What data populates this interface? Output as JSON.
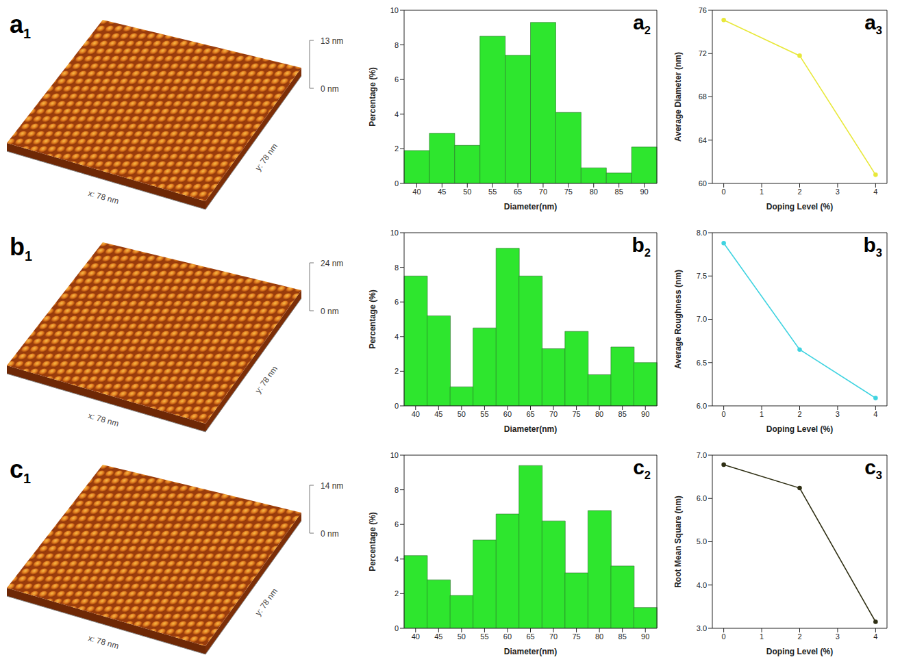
{
  "images": [
    {
      "panel": "a1",
      "z_max": "13 nm",
      "z_min": "0 nm",
      "x_label": "x: 78 nm",
      "y_label": "y: 78 nm"
    },
    {
      "panel": "b1",
      "z_max": "24 nm",
      "z_min": "0 nm",
      "x_label": "x: 78 nm",
      "y_label": "y: 78 nm"
    },
    {
      "panel": "c1",
      "z_max": "14 nm",
      "z_min": "0 nm",
      "x_label": "x: 78 nm",
      "y_label": "y: 78 nm"
    }
  ],
  "chart_data": [
    {
      "panel": "a2",
      "type": "bar",
      "x_label": "Diameter(nm)",
      "y_label": "Percentage (%)",
      "categories": [
        "40",
        "45",
        "50",
        "55",
        "65",
        "70",
        "75",
        "80",
        "85",
        "90"
      ],
      "values": [
        1.9,
        2.9,
        2.2,
        8.5,
        7.4,
        9.3,
        4.1,
        0.9,
        0.6,
        2.1
      ],
      "color": "#2ee62e",
      "ylim": [
        0,
        10
      ],
      "yticks": [
        0,
        2,
        4,
        6,
        8,
        10
      ]
    },
    {
      "panel": "a3",
      "type": "line",
      "x_label": "Doping Level (%)",
      "y_label": "Average Diameter (nm)",
      "x": [
        0,
        2,
        4
      ],
      "values": [
        75.1,
        71.8,
        60.8
      ],
      "color": "#e8e83a",
      "marker": "circle",
      "xlim": [
        -0.3,
        4.3
      ],
      "xticks": [
        0,
        1,
        2,
        3,
        4
      ],
      "ylim": [
        60,
        76
      ],
      "yticks": [
        60,
        64,
        68,
        72,
        76
      ]
    },
    {
      "panel": "b2",
      "type": "bar",
      "x_label": "Diameter(nm)",
      "y_label": "Percentage (%)",
      "categories": [
        "40",
        "45",
        "50",
        "55",
        "60",
        "65",
        "70",
        "75",
        "80",
        "85",
        "90"
      ],
      "values": [
        7.5,
        5.2,
        1.1,
        4.5,
        9.1,
        7.5,
        3.3,
        4.3,
        1.8,
        3.4,
        2.5
      ],
      "color": "#2ee62e",
      "ylim": [
        0,
        10
      ],
      "yticks": [
        0,
        2,
        4,
        6,
        8,
        10
      ]
    },
    {
      "panel": "b3",
      "type": "line",
      "x_label": "Doping Level (%)",
      "y_label": "Average Roughness (nm)",
      "x": [
        0,
        2,
        4
      ],
      "values": [
        7.88,
        6.65,
        6.09
      ],
      "color": "#3fd3e0",
      "marker": "circle",
      "xlim": [
        -0.3,
        4.3
      ],
      "xticks": [
        0,
        1,
        2,
        3,
        4
      ],
      "ylim": [
        6,
        8
      ],
      "yticks": [
        {
          "value": 6,
          "label": "6.0"
        },
        {
          "value": 6.5,
          "label": "6.5"
        },
        {
          "value": 7,
          "label": "7.0"
        },
        {
          "value": 7.5,
          "label": "7.5"
        },
        {
          "value": 8,
          "label": "8.0"
        }
      ]
    },
    {
      "panel": "c2",
      "type": "bar",
      "x_label": "Diameter(nm)",
      "y_label": "Percentage (%)",
      "categories": [
        "40",
        "45",
        "50",
        "55",
        "60",
        "65",
        "70",
        "75",
        "80",
        "85",
        "90"
      ],
      "values": [
        4.2,
        2.8,
        1.9,
        5.1,
        6.6,
        9.4,
        6.2,
        3.2,
        6.8,
        3.6,
        1.2
      ],
      "color": "#2ee62e",
      "ylim": [
        0,
        10
      ],
      "yticks": [
        0,
        2,
        4,
        6,
        8,
        10
      ]
    },
    {
      "panel": "c3",
      "type": "line",
      "x_label": "Doping Level (%)",
      "y_label": "Root Mean Square (nm)",
      "x": [
        0,
        2,
        4
      ],
      "values": [
        6.78,
        6.24,
        3.15
      ],
      "color": "#2f2f14",
      "marker": "circle",
      "xlim": [
        -0.3,
        4.3
      ],
      "xticks": [
        0,
        1,
        2,
        3,
        4
      ],
      "ylim": [
        3,
        7
      ],
      "yticks": [
        {
          "value": 3,
          "label": "3.0"
        },
        {
          "value": 4,
          "label": "4.0"
        },
        {
          "value": 5,
          "label": "5.0"
        },
        {
          "value": 6,
          "label": "6.0"
        },
        {
          "value": 7,
          "label": "7.0"
        }
      ]
    }
  ]
}
